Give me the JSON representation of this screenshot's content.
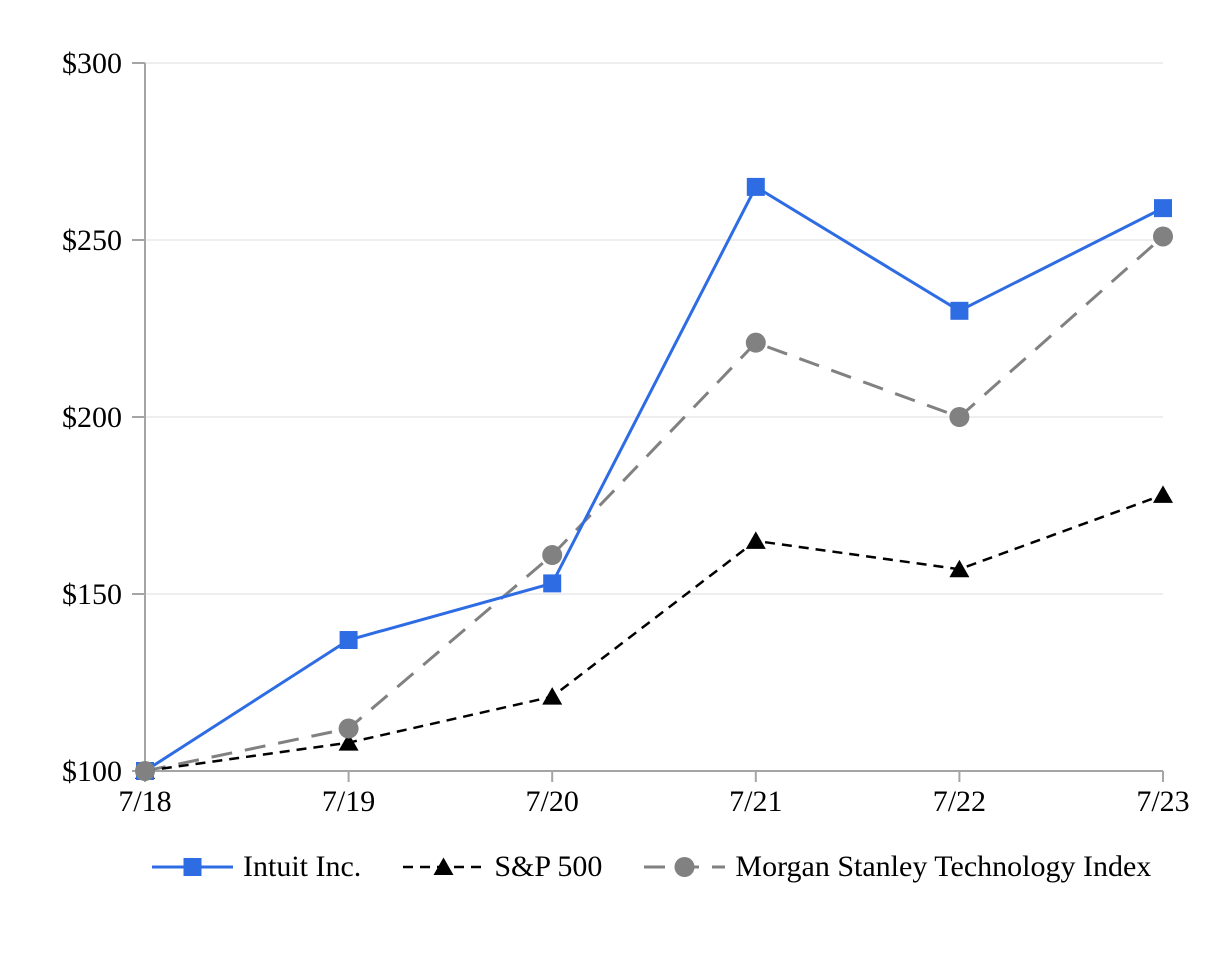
{
  "chart_data": {
    "type": "line",
    "title": "",
    "categories": [
      "7/18",
      "7/19",
      "7/20",
      "7/21",
      "7/22",
      "7/23"
    ],
    "x_axis": {
      "tick_labels": [
        "7/18",
        "7/19",
        "7/20",
        "7/21",
        "7/22",
        "7/23"
      ]
    },
    "y_axis": {
      "min": 100,
      "max": 300,
      "tick_values": [
        100,
        150,
        200,
        250,
        300
      ],
      "tick_labels": [
        "$100",
        "$150",
        "$200",
        "$250",
        "$300"
      ]
    },
    "grid": "horizontal",
    "legend_position": "bottom",
    "series": [
      {
        "name": "Intuit Inc.",
        "color": "#2e6ce4",
        "line_style": "solid",
        "marker": "square",
        "values": [
          100,
          137,
          153,
          265,
          230,
          259
        ]
      },
      {
        "name": "S&P 500",
        "color": "#000000",
        "line_style": "short-dash",
        "marker": "triangle",
        "values": [
          100,
          108,
          121,
          165,
          157,
          178
        ]
      },
      {
        "name": "Morgan Stanley Technology Index",
        "color": "#818181",
        "line_style": "long-dash",
        "marker": "circle",
        "values": [
          100,
          112,
          161,
          221,
          200,
          251
        ]
      }
    ],
    "colors": {
      "axis": "#a5a5a5",
      "gridline": "#e8e8e8",
      "background": "#ffffff",
      "text": "#000000"
    }
  }
}
